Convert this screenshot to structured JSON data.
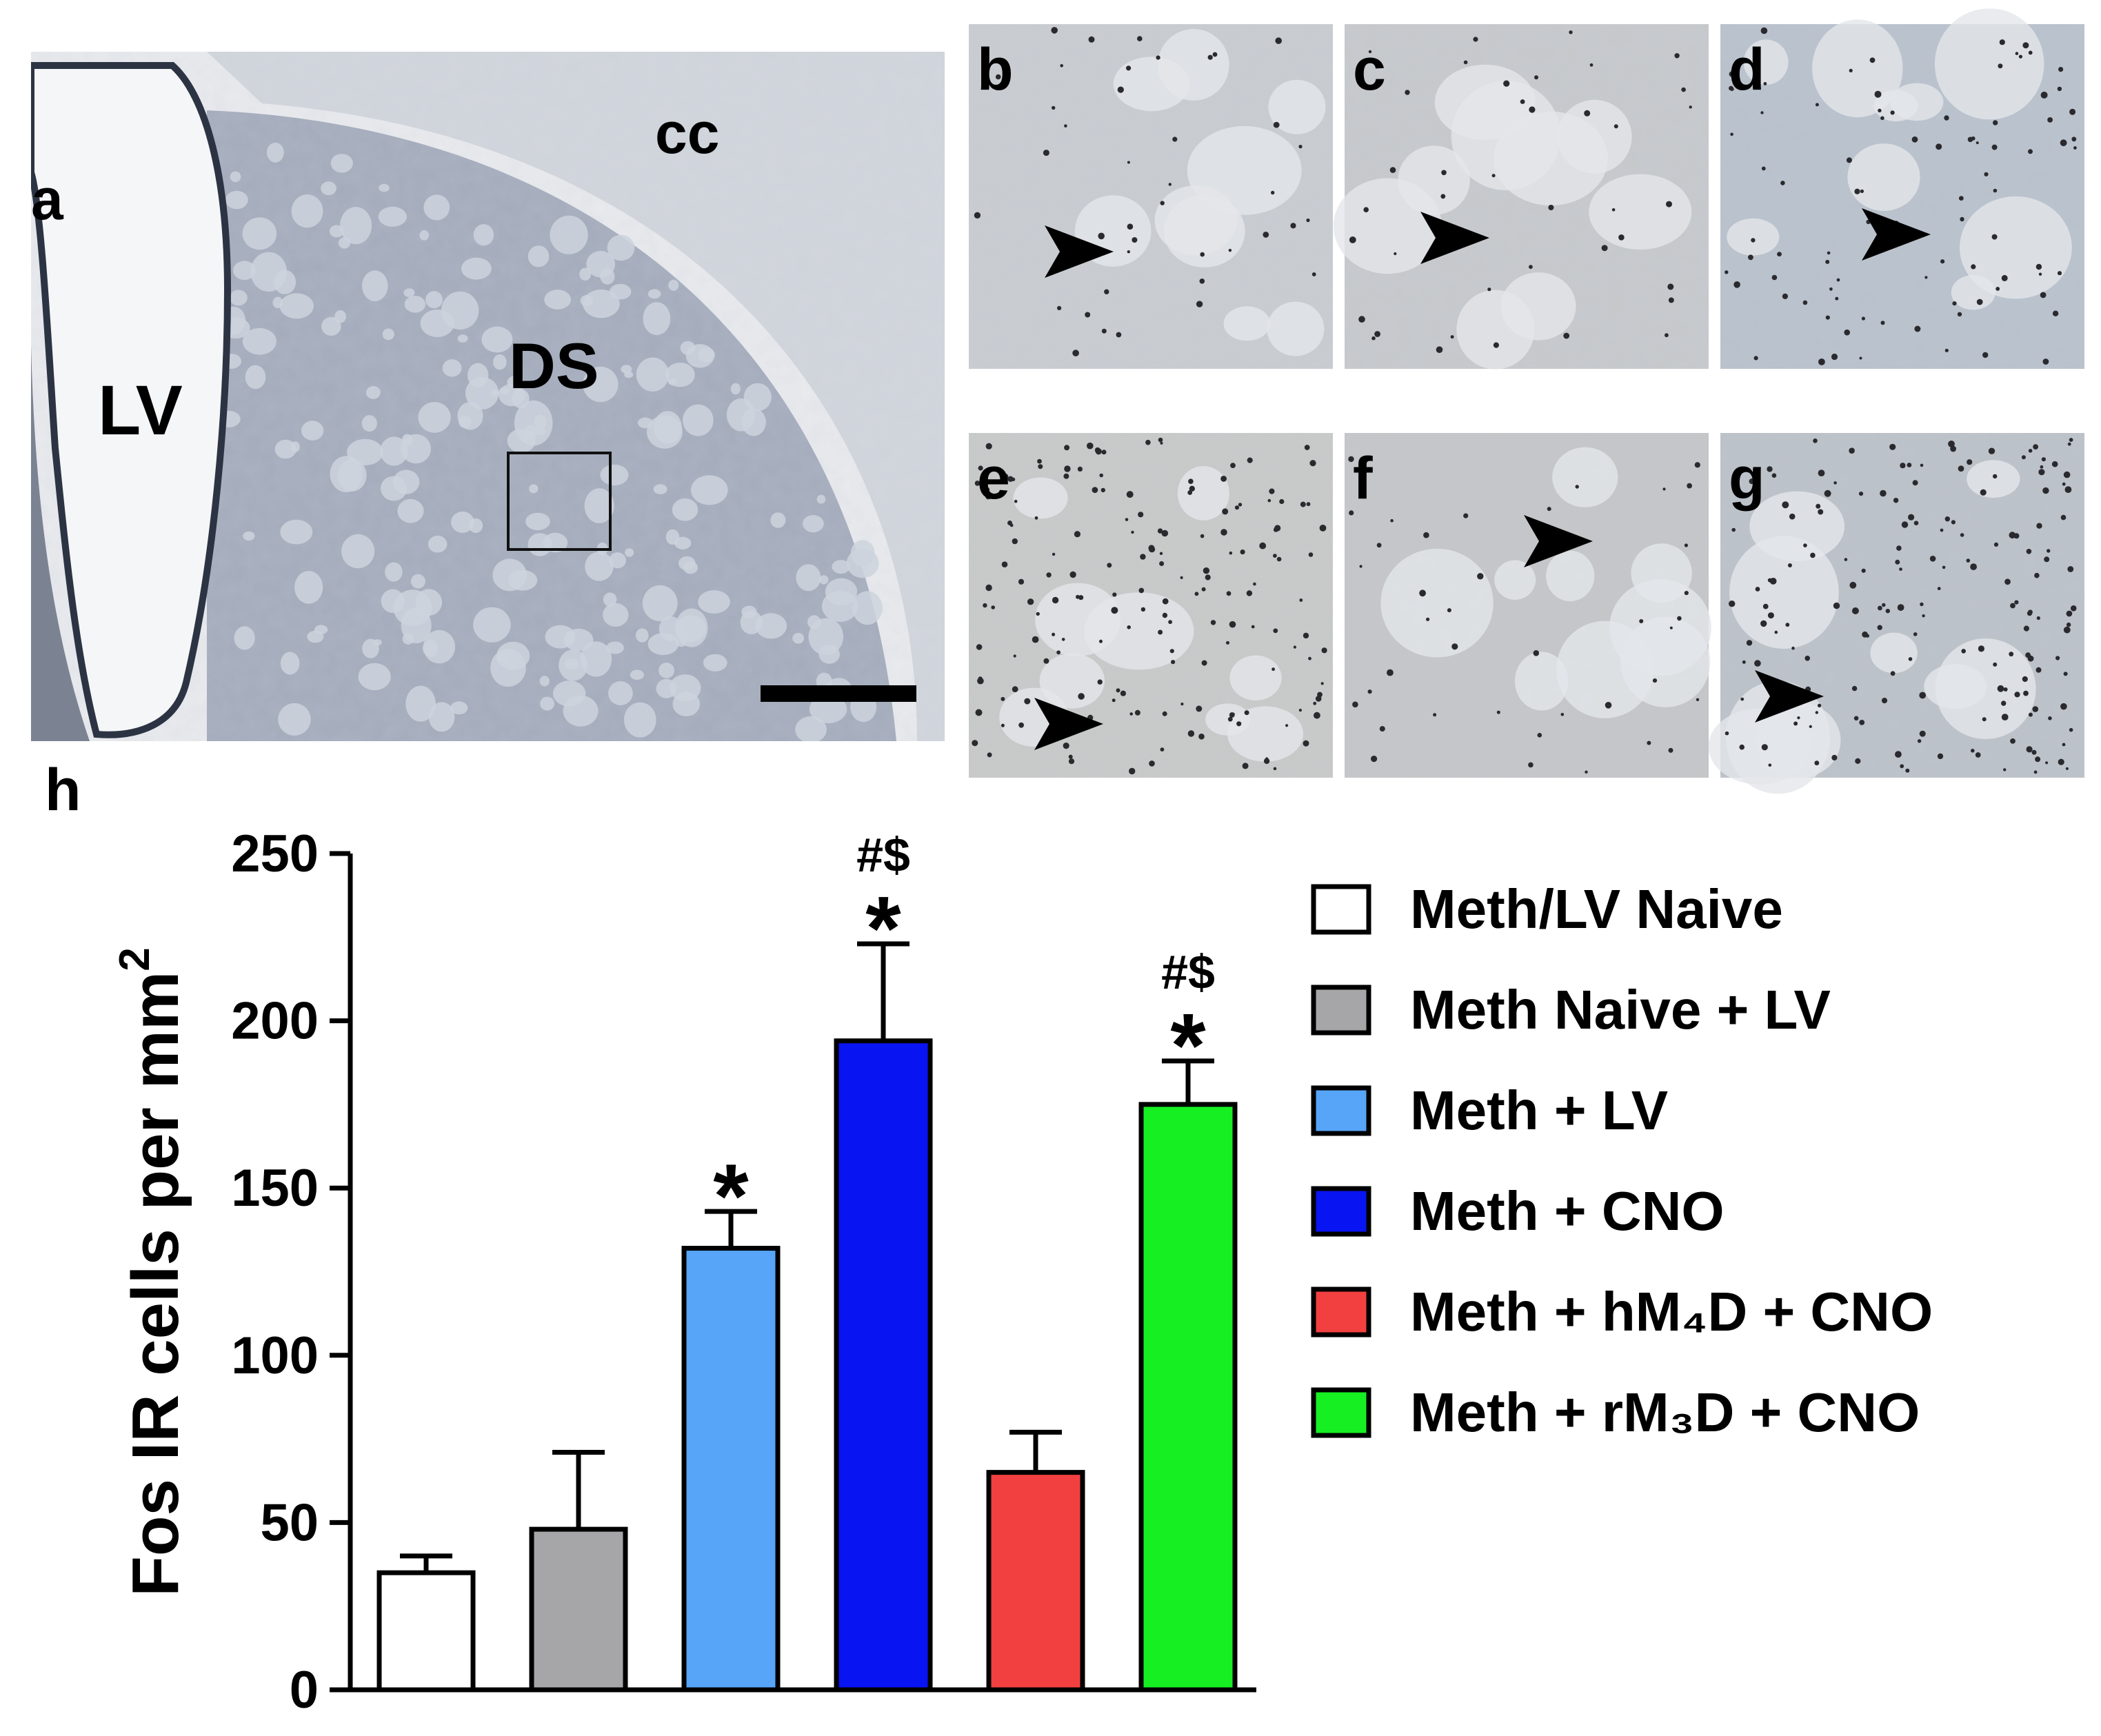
{
  "panels": {
    "a": {
      "letter": "a",
      "regions": {
        "lv": "LV",
        "cc": "cc",
        "ds": "DS"
      }
    },
    "micrographs": [
      {
        "letter": "b",
        "density": "low"
      },
      {
        "letter": "c",
        "density": "low"
      },
      {
        "letter": "d",
        "density": "medium"
      },
      {
        "letter": "e",
        "density": "high"
      },
      {
        "letter": "f",
        "density": "low"
      },
      {
        "letter": "g",
        "density": "high"
      }
    ],
    "h": {
      "letter": "h"
    }
  },
  "chart_data": {
    "type": "bar",
    "ylabel": "Fos IR cells per mm",
    "ylabel_superscript": "2",
    "ylim": [
      0,
      250
    ],
    "yticks": [
      "0",
      "50",
      "100",
      "150",
      "200",
      "250"
    ],
    "series": [
      {
        "name": "Meth/LV Naive",
        "value": 35,
        "error": 5,
        "color": "#ffffff",
        "marks": []
      },
      {
        "name": "Meth Naive + LV",
        "value": 48,
        "error": 23,
        "color": "#a6a6a8",
        "marks": []
      },
      {
        "name": "Meth + LV",
        "value": 132,
        "error": 11,
        "color": "#56a5f8",
        "marks": [
          "*"
        ]
      },
      {
        "name": "Meth + CNO",
        "value": 194,
        "error": 29,
        "color": "#0914f2",
        "marks": [
          "*",
          "#$"
        ]
      },
      {
        "name": "Meth + hM₄D + CNO",
        "value": 65,
        "error": 12,
        "color": "#f24040",
        "marks": []
      },
      {
        "name": "Meth + rM₃D + CNO",
        "value": 175,
        "error": 13,
        "color": "#16f022",
        "marks": [
          "*",
          "#$"
        ]
      }
    ],
    "legend": {
      "placement": "right",
      "entries": [
        "Meth/LV Naive",
        "Meth Naive + LV",
        "Meth + LV",
        "Meth + CNO",
        "Meth + hM₄D + CNO",
        "Meth + rM₃D + CNO"
      ]
    }
  }
}
